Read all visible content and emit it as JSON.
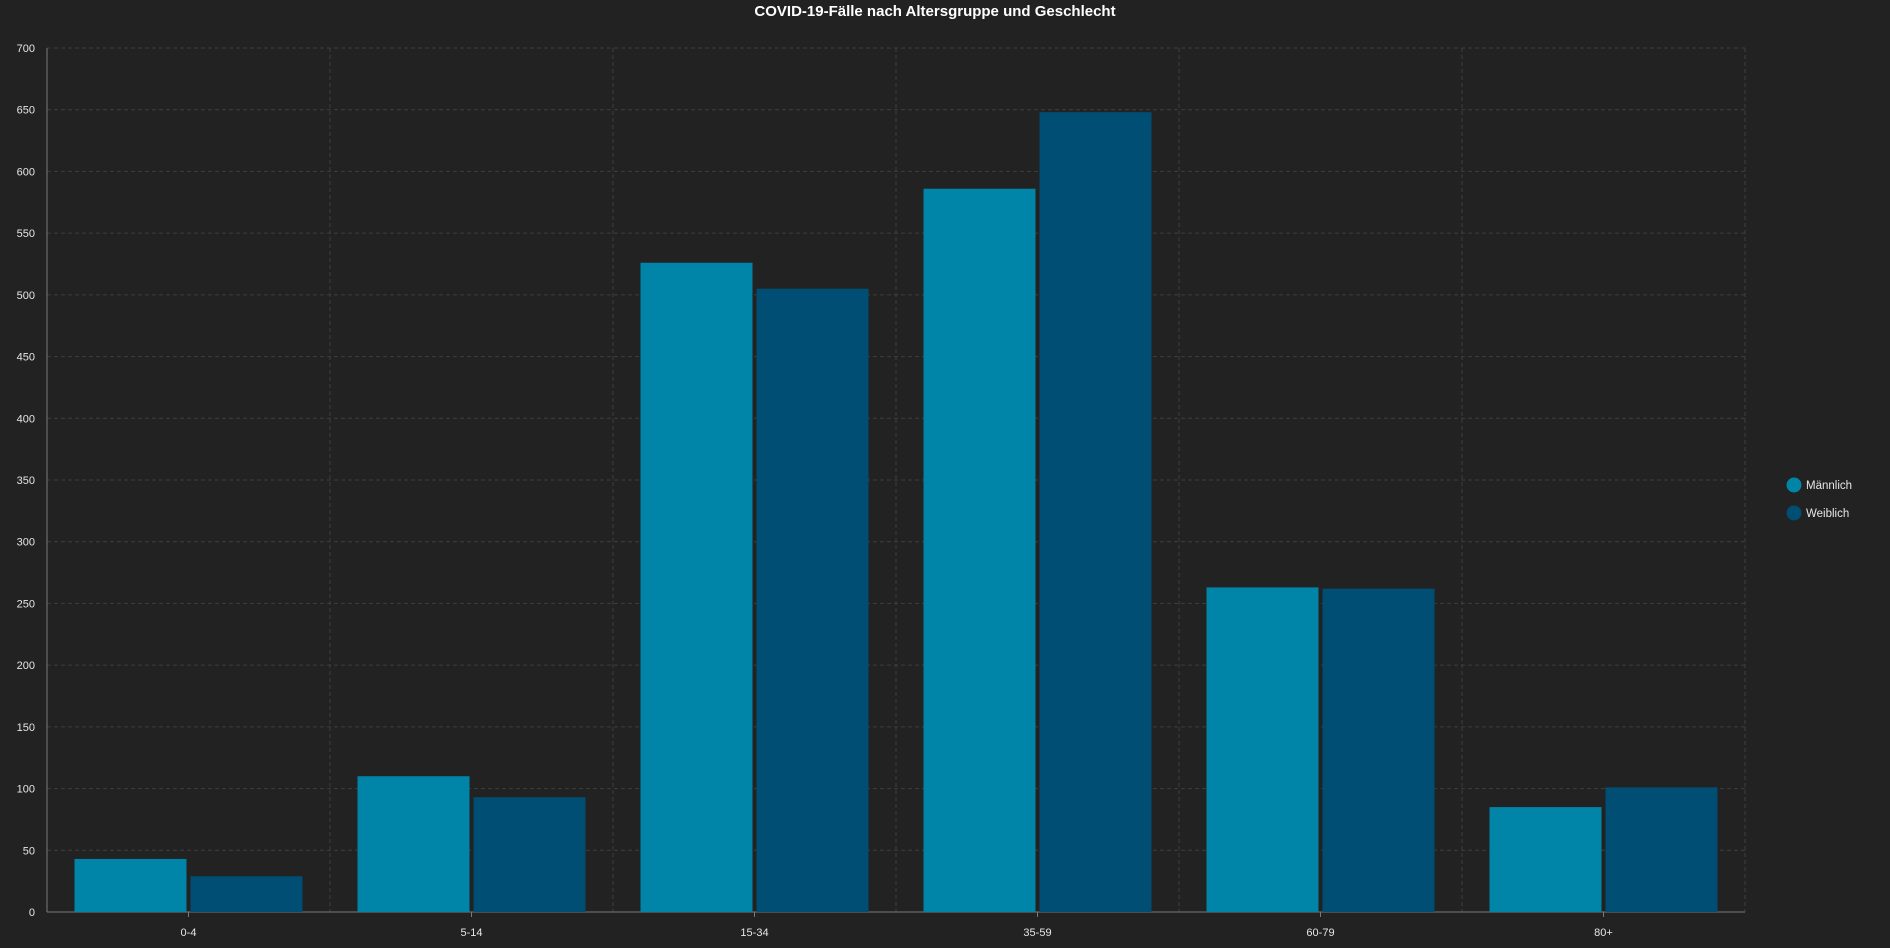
{
  "chart_data": {
    "type": "bar",
    "title": "COVID-19-Fälle nach Altersgruppe und Geschlecht",
    "xlabel": "",
    "ylabel": "",
    "categories": [
      "0-4",
      "5-14",
      "15-34",
      "35-59",
      "60-79",
      "80+"
    ],
    "series": [
      {
        "name": "Männlich",
        "values": [
          43,
          110,
          526,
          586,
          263,
          85
        ],
        "color": "#0084a8"
      },
      {
        "name": "Weiblich",
        "values": [
          29,
          93,
          505,
          648,
          262,
          101
        ],
        "color": "#004e73"
      }
    ],
    "ylim": [
      0,
      700
    ],
    "yticks": [
      0,
      50,
      100,
      150,
      200,
      250,
      300,
      350,
      400,
      450,
      500,
      550,
      600,
      650,
      700
    ],
    "grid": true,
    "legend_position": "right"
  }
}
